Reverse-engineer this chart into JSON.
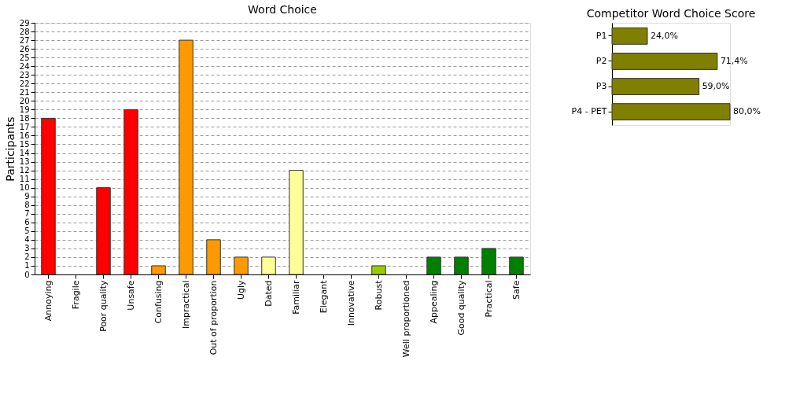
{
  "chart_data": [
    {
      "type": "bar",
      "title": "Word Choice",
      "ylabel": "Participants",
      "categories": [
        "Annoying",
        "Fragile",
        "Poor quality",
        "Unsafe",
        "Confusing",
        "Impractical",
        "Out of proportion",
        "Ugly",
        "Dated",
        "Familiar",
        "Elegant",
        "Innovative",
        "Robust",
        "Well proportioned",
        "Appealing",
        "Good quality",
        "Practical",
        "Safe"
      ],
      "values": [
        18,
        0,
        10,
        19,
        1,
        27,
        4,
        2,
        2,
        12,
        0,
        0,
        1,
        0,
        2,
        2,
        3,
        2
      ],
      "colors": [
        "#ff0000",
        null,
        "#ff0000",
        "#ff0000",
        "#ff9900",
        "#ff9900",
        "#ff9900",
        "#ff9900",
        "#ffff99",
        "#ffff99",
        null,
        null,
        "#99cc00",
        null,
        "#008000",
        "#008000",
        "#008000",
        "#008000"
      ],
      "ylim": [
        0,
        29
      ],
      "yticks": [
        0,
        1,
        2,
        3,
        4,
        5,
        6,
        7,
        8,
        9,
        10,
        11,
        12,
        13,
        14,
        15,
        16,
        17,
        18,
        19,
        20,
        21,
        22,
        23,
        24,
        25,
        26,
        27,
        28,
        29
      ],
      "grid": "y",
      "legend": false
    },
    {
      "type": "bar",
      "title": "Competitor Word Choice Score",
      "orientation": "horizontal",
      "categories": [
        "P1",
        "P2",
        "P3",
        "P4 - PET"
      ],
      "values": [
        24.0,
        71.4,
        59.0,
        80.0
      ],
      "color": "#808000",
      "value_labels": [
        "24,0%",
        "71,4%",
        "59,0%",
        "80,0%"
      ],
      "tick_labels": "y",
      "grid": false,
      "legend": false
    }
  ]
}
